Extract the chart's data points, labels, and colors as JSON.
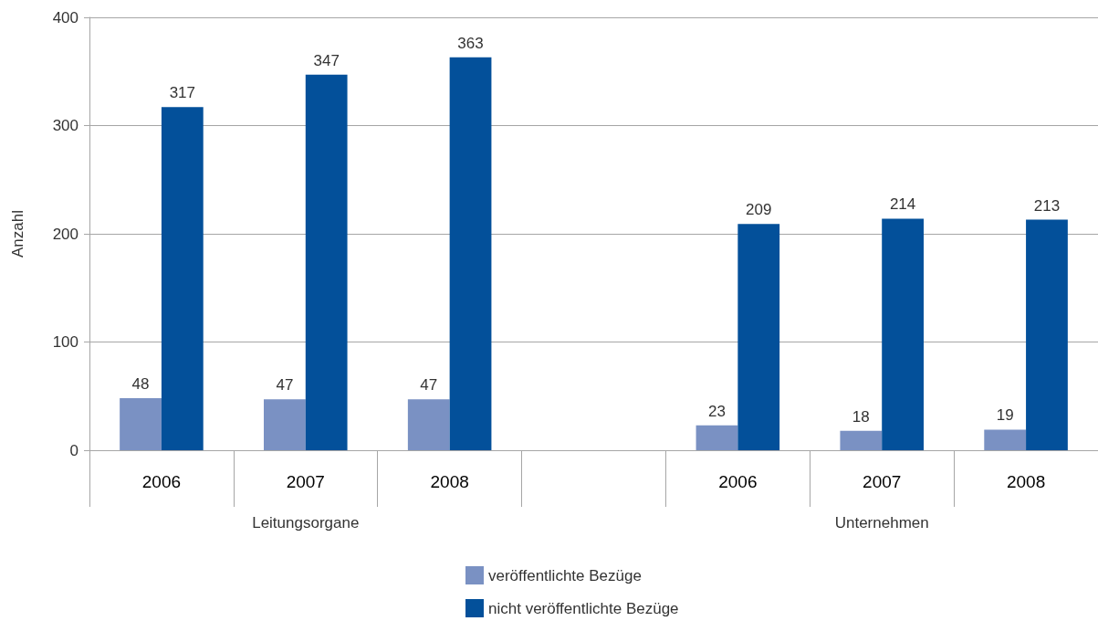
{
  "chart_data": {
    "type": "bar",
    "ylabel": "Anzahl",
    "categories": [
      "2006",
      "2007",
      "2008",
      null,
      "2006",
      "2007",
      "2008"
    ],
    "series": [
      {
        "name": "veröffentlichte Bezüge",
        "color": "#7a91c3",
        "values": [
          48,
          47,
          47,
          null,
          23,
          18,
          19
        ]
      },
      {
        "name": "nicht veröffentlichte Bezüge",
        "color": "#03509a",
        "values": [
          317,
          347,
          363,
          null,
          209,
          214,
          213
        ]
      }
    ],
    "ylim": [
      0,
      400
    ],
    "yticks": [
      0,
      100,
      200,
      300,
      400
    ],
    "grid": "y",
    "legend": "bottom",
    "data_labels": true,
    "annotations": [
      "Leitungsorgane",
      "Unternehmen"
    ]
  }
}
